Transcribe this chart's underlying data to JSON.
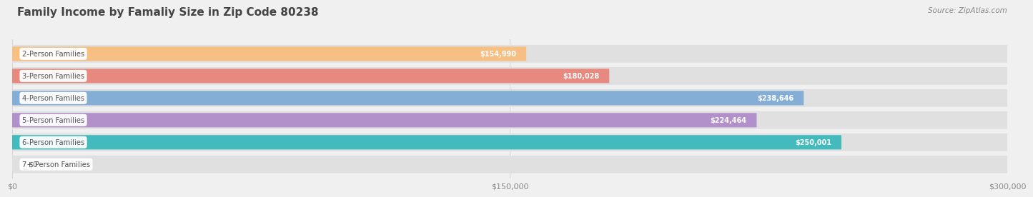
{
  "title": "Family Income by Famaliy Size in Zip Code 80238",
  "source": "Source: ZipAtlas.com",
  "categories": [
    "2-Person Families",
    "3-Person Families",
    "4-Person Families",
    "5-Person Families",
    "6-Person Families",
    "7+ Person Families"
  ],
  "values": [
    154990,
    180028,
    238646,
    224464,
    250001,
    0
  ],
  "labels": [
    "$154,990",
    "$180,028",
    "$238,646",
    "$224,464",
    "$250,001",
    "$0"
  ],
  "bar_colors": [
    "#f9be7c",
    "#e8857a",
    "#7facd6",
    "#b08cc8",
    "#3ab8bc",
    "#c5c8e8"
  ],
  "bg_color": "#f0f0f0",
  "bar_bg_color": "#e0e0e0",
  "xlim": [
    0,
    300000
  ],
  "xticklabels": [
    "$0",
    "$150,000",
    "$300,000"
  ],
  "xtick_vals": [
    0,
    150000,
    300000
  ],
  "title_color": "#444444",
  "source_color": "#888888",
  "label_color_inside": "#ffffff",
  "label_color_outside": "#666666",
  "cat_label_color": "#555555",
  "cat_label_bg": "#ffffff"
}
